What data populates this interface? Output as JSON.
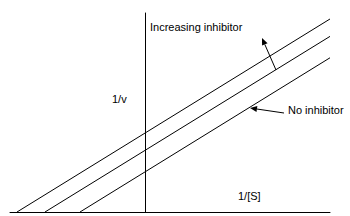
{
  "chart_data": {
    "type": "line",
    "xlabel": "1/[S]",
    "ylabel": "1/v",
    "xlim": [
      -2.7,
      3.7
    ],
    "ylim": [
      0,
      4
    ],
    "tick_labels": false,
    "grid": false,
    "color": "#000000",
    "series": [
      {
        "x": [
          -2.56,
          3.7
        ],
        "values": [
          0,
          3.88
        ]
      },
      {
        "x": [
          -2.0,
          3.7
        ],
        "values": [
          0,
          3.53
        ]
      },
      {
        "x": [
          -1.3,
          3.7
        ],
        "values": [
          0,
          3.1
        ]
      }
    ],
    "annotations": [
      {
        "text": "Increasing inhibitor"
      },
      {
        "text": "No inhibitor"
      }
    ]
  }
}
